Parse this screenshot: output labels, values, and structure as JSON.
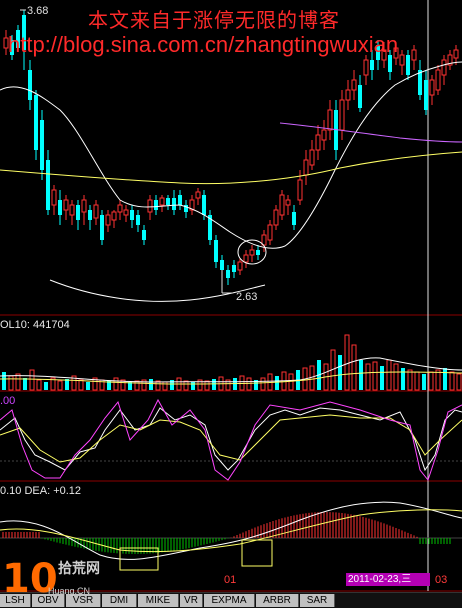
{
  "watermark": {
    "title": "本文来自于涨停无限的博客",
    "url": "http://blog.sina.com.cn/zhangtingwuxian"
  },
  "price_panel": {
    "high_label": "3.68",
    "low_label": "2.63"
  },
  "volume_panel": {
    "label": "OL10: 441704"
  },
  "kdj_panel": {
    "label": ".00"
  },
  "macd_panel": {
    "label": "0.10 DEA: +0.12"
  },
  "time_axis": {
    "month_label": "01",
    "cursor_date": "2011-02-23,三",
    "cursor_hour": "03"
  },
  "logo": {
    "big": "10",
    "cn": "拾荒网",
    "url": "Huang.CN"
  },
  "tabs": [
    "LSH",
    "OBV",
    "VSR",
    "DMI",
    "MIKE",
    "VR",
    "EXPMA",
    "ARBR",
    "SAR"
  ],
  "colors": {
    "up": "#ff3232",
    "down": "#00ffff",
    "ma5": "#ffffff",
    "ma_mid": "#ffff66",
    "ma_long": "#cc66ff",
    "cursor": "#b400b4"
  },
  "chart_data": {
    "type": "candlestick",
    "price_high_marker": 3.68,
    "price_low_marker": 2.63,
    "volume_label_value": 441704,
    "dea_value": 0.12,
    "cursor_date": "2011-02-23"
  }
}
